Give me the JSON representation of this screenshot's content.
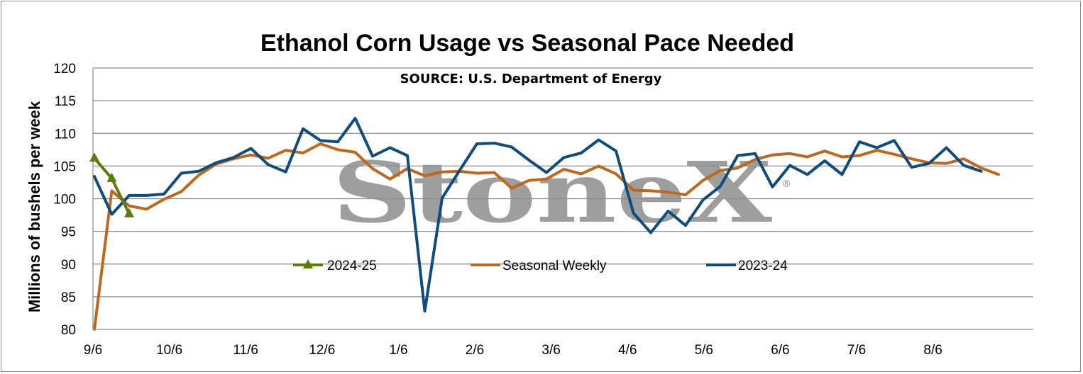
{
  "chart_data": {
    "type": "line",
    "title": "Ethanol Corn Usage vs Seasonal Pace Needed",
    "subtitle": "SOURCE: U.S. Department of Energy",
    "ylabel": "Millions of bushels per week",
    "xlabel": "",
    "ylim": [
      80,
      120
    ],
    "yticks": [
      "80",
      "85",
      "90",
      "95",
      "100",
      "105",
      "110",
      "115",
      "120"
    ],
    "x_tick_labels": [
      "9/6",
      "10/6",
      "11/6",
      "12/6",
      "1/6",
      "2/6",
      "3/6",
      "4/6",
      "5/6",
      "6/6",
      "7/6",
      "8/6"
    ],
    "grid": "horizontal",
    "legend_position": "inside-bottom",
    "watermark": "StoneX",
    "series": [
      {
        "name": "2024-25",
        "color": "#5a7d0c",
        "marker": "triangle",
        "values": [
          106.2,
          103.1,
          97.7
        ]
      },
      {
        "name": "Seasonal Weekly",
        "color": "#c0671b",
        "marker": "none",
        "values": [
          80.0,
          101.2,
          98.9,
          98.4,
          99.9,
          101.1,
          103.6,
          105.3,
          106.1,
          106.7,
          106.2,
          107.4,
          107.0,
          108.4,
          107.5,
          107.1,
          104.6,
          103.0,
          104.6,
          103.5,
          104.1,
          104.2,
          103.9,
          104.0,
          101.6,
          102.8,
          103.0,
          104.5,
          103.8,
          105.0,
          103.8,
          101.3,
          101.2,
          101.0,
          100.6,
          102.8,
          104.3,
          104.7,
          106.0,
          106.7,
          106.9,
          106.4,
          107.3,
          106.4,
          106.6,
          107.4,
          106.8,
          106.1,
          105.5,
          105.4,
          106.1,
          104.7,
          103.7
        ]
      },
      {
        "name": "2023-24",
        "color": "#0e4c7e",
        "marker": "none",
        "values": [
          103.4,
          97.6,
          100.5,
          100.5,
          100.7,
          103.9,
          104.2,
          105.5,
          106.3,
          107.7,
          105.2,
          104.1,
          110.7,
          108.9,
          108.7,
          112.3,
          106.5,
          107.8,
          106.6,
          82.8,
          100.1,
          104.3,
          108.4,
          108.5,
          107.9,
          105.9,
          104.0,
          106.3,
          107.0,
          109.0,
          107.3,
          97.8,
          94.8,
          98.1,
          95.9,
          99.8,
          101.9,
          106.6,
          106.9,
          101.8,
          105.1,
          103.7,
          105.8,
          103.7,
          108.7,
          107.8,
          108.9,
          104.8,
          105.4,
          107.8,
          105.1,
          104.2
        ]
      }
    ]
  }
}
